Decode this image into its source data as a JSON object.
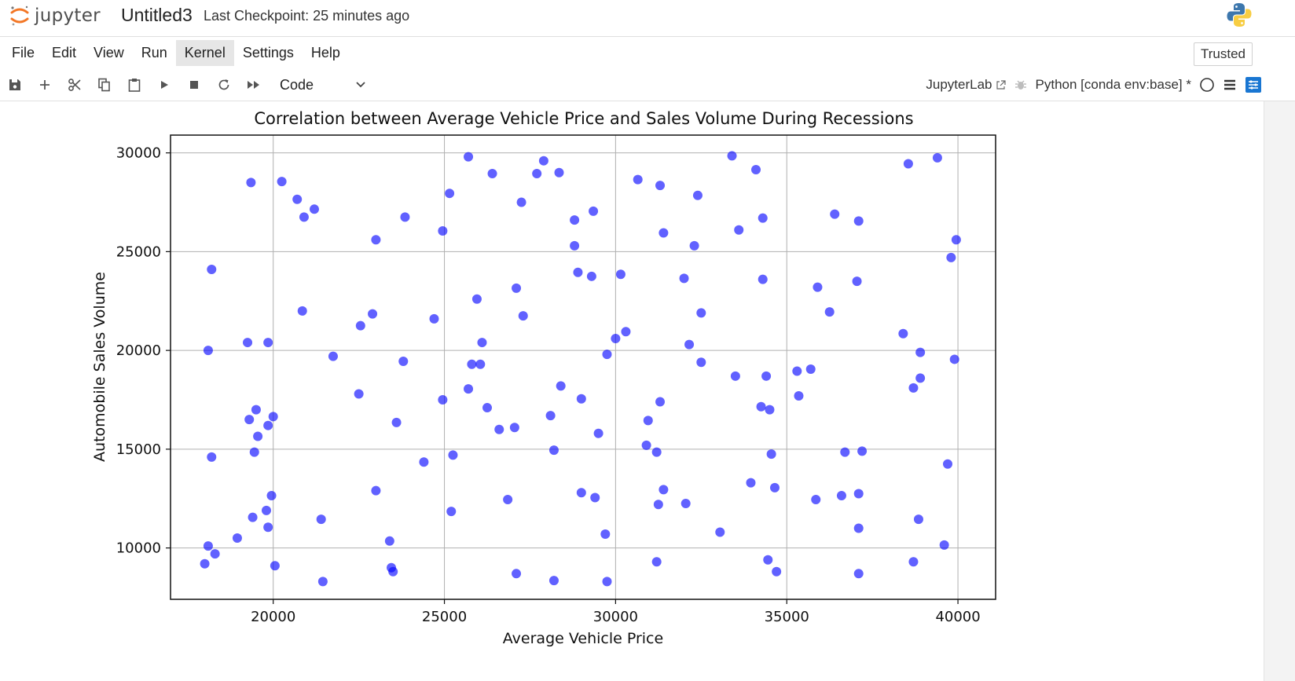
{
  "header": {
    "logo_text": "jupyter",
    "notebook_title": "Untitled3",
    "checkpoint": "Last Checkpoint: 25 minutes ago"
  },
  "menu": {
    "items": [
      "File",
      "Edit",
      "View",
      "Run",
      "Kernel",
      "Settings",
      "Help"
    ],
    "active": "Kernel",
    "trusted_label": "Trusted"
  },
  "toolbar": {
    "cell_type": "Code",
    "jupyterlab_label": "JupyterLab",
    "kernel_label": "Python [conda env:base] *",
    "icons": [
      "save-icon",
      "add-icon",
      "cut-icon",
      "copy-icon",
      "paste-icon",
      "run-icon",
      "stop-icon",
      "restart-icon",
      "fast-forward-icon"
    ]
  },
  "colors": {
    "point": "#0000ff",
    "accent": "#1976d2",
    "jupyter_orange": "#f37726"
  },
  "chart_data": {
    "type": "scatter",
    "title": "Correlation between Average Vehicle Price and Sales Volume During Recessions",
    "xlabel": "Average Vehicle Price",
    "ylabel": "Automobile Sales Volume",
    "xlim": [
      17000,
      41100
    ],
    "ylim": [
      7400,
      30900
    ],
    "xticks": [
      20000,
      25000,
      30000,
      35000,
      40000
    ],
    "yticks": [
      10000,
      15000,
      20000,
      25000,
      30000
    ],
    "grid": true,
    "points": [
      [
        18200,
        24100
      ],
      [
        18100,
        20000
      ],
      [
        18200,
        14600
      ],
      [
        18100,
        10100
      ],
      [
        18000,
        9200
      ],
      [
        18300,
        9700
      ],
      [
        18950,
        10500
      ],
      [
        19350,
        28500
      ],
      [
        19250,
        20400
      ],
      [
        19300,
        16500
      ],
      [
        19500,
        17000
      ],
      [
        19550,
        15650
      ],
      [
        19450,
        14850
      ],
      [
        19400,
        11550
      ],
      [
        19800,
        11900
      ],
      [
        19850,
        11050
      ],
      [
        19850,
        16200
      ],
      [
        19850,
        20400
      ],
      [
        19950,
        12650
      ],
      [
        20000,
        16650
      ],
      [
        20050,
        9100
      ],
      [
        20250,
        28550
      ],
      [
        20700,
        27650
      ],
      [
        20900,
        26750
      ],
      [
        20850,
        22000
      ],
      [
        21200,
        27150
      ],
      [
        21400,
        11450
      ],
      [
        21450,
        8300
      ],
      [
        21750,
        19700
      ],
      [
        22500,
        17800
      ],
      [
        22550,
        21250
      ],
      [
        22900,
        21850
      ],
      [
        23000,
        25600
      ],
      [
        23000,
        12900
      ],
      [
        23400,
        10350
      ],
      [
        23450,
        9000
      ],
      [
        23500,
        8800
      ],
      [
        23600,
        16350
      ],
      [
        23800,
        19450
      ],
      [
        23850,
        26750
      ],
      [
        24400,
        14350
      ],
      [
        24700,
        21600
      ],
      [
        24950,
        17500
      ],
      [
        24950,
        26050
      ],
      [
        25150,
        27950
      ],
      [
        25250,
        14700
      ],
      [
        25200,
        11850
      ],
      [
        25700,
        18050
      ],
      [
        25700,
        29800
      ],
      [
        25800,
        19300
      ],
      [
        25950,
        22600
      ],
      [
        26050,
        19300
      ],
      [
        26100,
        20400
      ],
      [
        26250,
        17100
      ],
      [
        26400,
        28950
      ],
      [
        26600,
        16000
      ],
      [
        26850,
        12450
      ],
      [
        27050,
        16100
      ],
      [
        27100,
        23150
      ],
      [
        27100,
        8700
      ],
      [
        27300,
        21750
      ],
      [
        27250,
        27500
      ],
      [
        27700,
        28950
      ],
      [
        27900,
        29600
      ],
      [
        28100,
        16700
      ],
      [
        28200,
        14950
      ],
      [
        28200,
        8350
      ],
      [
        28400,
        18200
      ],
      [
        28350,
        29000
      ],
      [
        28800,
        25300
      ],
      [
        28800,
        26600
      ],
      [
        28900,
        23950
      ],
      [
        29000,
        17550
      ],
      [
        29000,
        12800
      ],
      [
        29300,
        23750
      ],
      [
        29350,
        27050
      ],
      [
        29400,
        12550
      ],
      [
        29500,
        15800
      ],
      [
        29700,
        10700
      ],
      [
        29750,
        19800
      ],
      [
        29750,
        8300
      ],
      [
        30000,
        20600
      ],
      [
        30150,
        23850
      ],
      [
        30300,
        20950
      ],
      [
        30650,
        28650
      ],
      [
        30900,
        15200
      ],
      [
        30950,
        16450
      ],
      [
        31200,
        9300
      ],
      [
        31200,
        14850
      ],
      [
        31250,
        12200
      ],
      [
        31300,
        17400
      ],
      [
        31300,
        28350
      ],
      [
        31400,
        12950
      ],
      [
        31400,
        25950
      ],
      [
        32000,
        23650
      ],
      [
        32050,
        12250
      ],
      [
        32150,
        20300
      ],
      [
        32300,
        25300
      ],
      [
        32400,
        27850
      ],
      [
        32500,
        21900
      ],
      [
        32500,
        19400
      ],
      [
        33050,
        10800
      ],
      [
        33400,
        29850
      ],
      [
        33500,
        18700
      ],
      [
        33600,
        26100
      ],
      [
        33950,
        13300
      ],
      [
        34100,
        29150
      ],
      [
        34250,
        17150
      ],
      [
        34300,
        26700
      ],
      [
        34300,
        23600
      ],
      [
        34400,
        18700
      ],
      [
        34450,
        9400
      ],
      [
        34500,
        17000
      ],
      [
        34550,
        14750
      ],
      [
        34650,
        13050
      ],
      [
        34700,
        8800
      ],
      [
        35300,
        18950
      ],
      [
        35350,
        17700
      ],
      [
        35700,
        19050
      ],
      [
        35850,
        12450
      ],
      [
        35900,
        23200
      ],
      [
        36250,
        21950
      ],
      [
        36400,
        26900
      ],
      [
        36600,
        12650
      ],
      [
        36700,
        14850
      ],
      [
        37050,
        23500
      ],
      [
        37100,
        12750
      ],
      [
        37100,
        11000
      ],
      [
        37100,
        26550
      ],
      [
        37100,
        8700
      ],
      [
        37200,
        14900
      ],
      [
        38400,
        20850
      ],
      [
        38550,
        29450
      ],
      [
        38700,
        18100
      ],
      [
        38700,
        9300
      ],
      [
        38850,
        11450
      ],
      [
        38900,
        19900
      ],
      [
        38900,
        18600
      ],
      [
        39400,
        29750
      ],
      [
        39600,
        10150
      ],
      [
        39700,
        14250
      ],
      [
        39800,
        24700
      ],
      [
        39900,
        19550
      ],
      [
        39950,
        25600
      ]
    ]
  }
}
